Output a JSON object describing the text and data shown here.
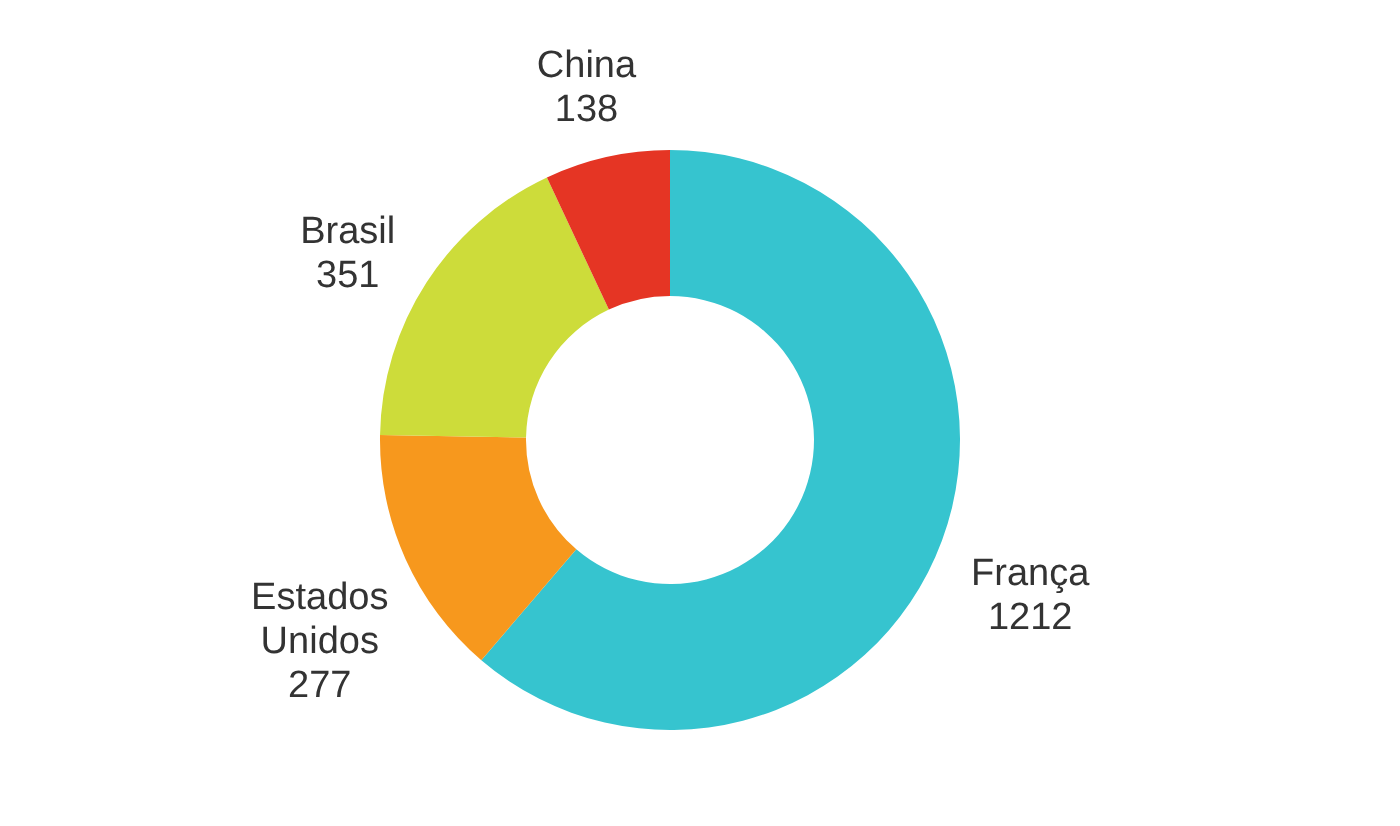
{
  "chart_data": {
    "type": "donut",
    "categories": [
      "França",
      "Estados Unidos",
      "Brasil",
      "China"
    ],
    "values": [
      1212,
      277,
      351,
      138
    ],
    "colors": [
      "#36c4cf",
      "#f7981d",
      "#cddc3a",
      "#e53524"
    ],
    "data_labels": true
  }
}
